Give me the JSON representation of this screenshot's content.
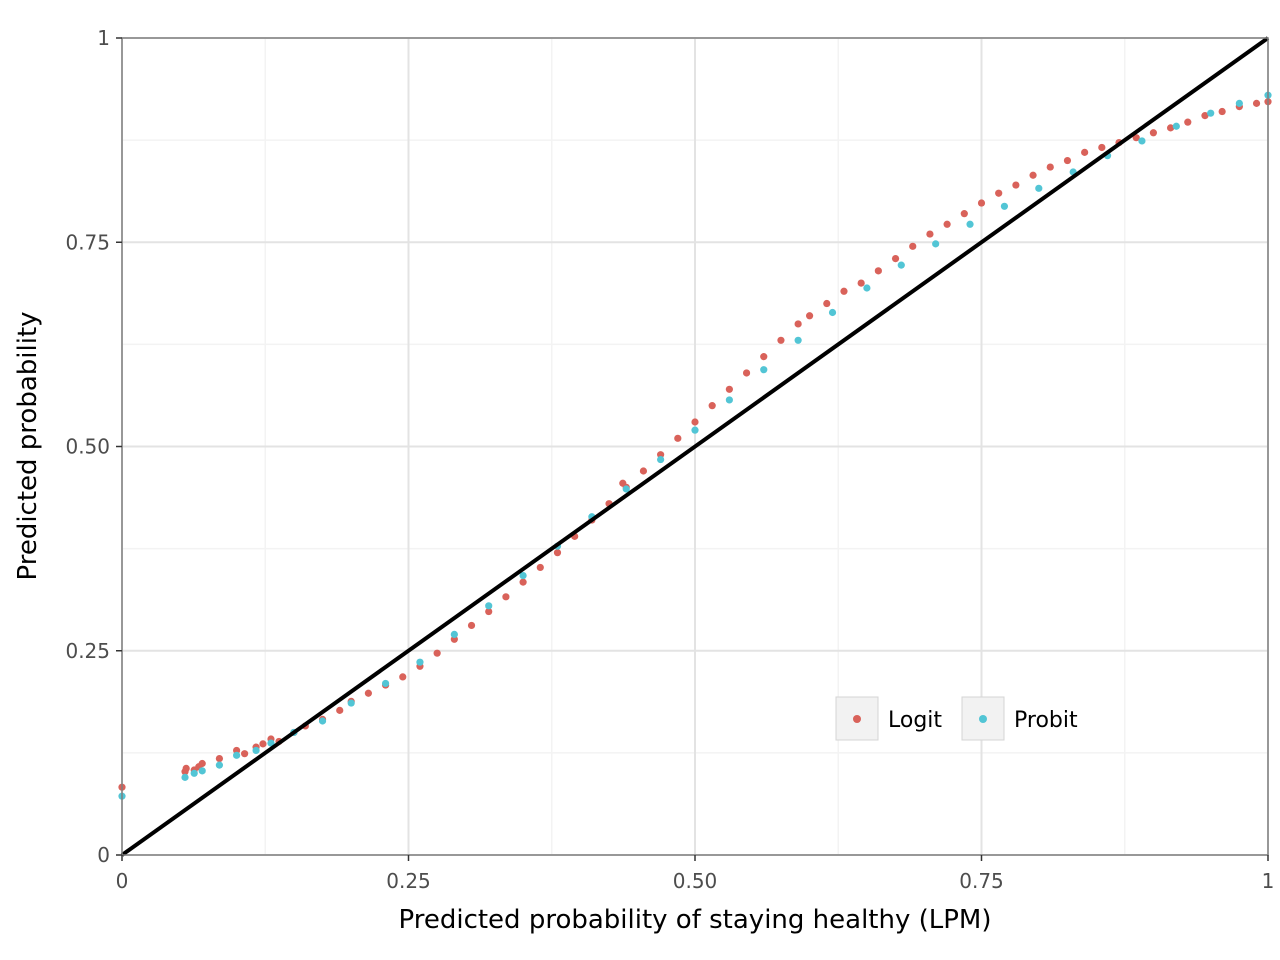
{
  "chart_data": {
    "type": "scatter",
    "xlabel": "Predicted probability of staying healthy (LPM)",
    "ylabel": "Predicted probability",
    "xlim": [
      0,
      1
    ],
    "ylim": [
      0,
      1
    ],
    "x_ticks": [
      {
        "value": 0,
        "label": "0"
      },
      {
        "value": 0.25,
        "label": "0.25"
      },
      {
        "value": 0.5,
        "label": "0.50"
      },
      {
        "value": 0.75,
        "label": "0.75"
      },
      {
        "value": 1,
        "label": "1"
      }
    ],
    "y_ticks": [
      {
        "value": 0,
        "label": "0"
      },
      {
        "value": 0.25,
        "label": "0.25"
      },
      {
        "value": 0.5,
        "label": "0.50"
      },
      {
        "value": 0.75,
        "label": "0.75"
      },
      {
        "value": 1,
        "label": "1"
      }
    ],
    "grid": true,
    "legend_position": "bottom-right",
    "reference_line": {
      "from": [
        0,
        0
      ],
      "to": [
        1,
        1
      ],
      "color": "#000000"
    },
    "series": [
      {
        "name": "Logit",
        "color": "#d9625a",
        "points": [
          [
            0.0,
            0.083
          ],
          [
            0.055,
            0.102
          ],
          [
            0.056,
            0.106
          ],
          [
            0.063,
            0.104
          ],
          [
            0.067,
            0.108
          ],
          [
            0.07,
            0.112
          ],
          [
            0.085,
            0.118
          ],
          [
            0.1,
            0.128
          ],
          [
            0.107,
            0.124
          ],
          [
            0.117,
            0.132
          ],
          [
            0.123,
            0.136
          ],
          [
            0.13,
            0.142
          ],
          [
            0.137,
            0.139
          ],
          [
            0.15,
            0.15
          ],
          [
            0.16,
            0.158
          ],
          [
            0.175,
            0.166
          ],
          [
            0.19,
            0.177
          ],
          [
            0.2,
            0.188
          ],
          [
            0.215,
            0.198
          ],
          [
            0.23,
            0.208
          ],
          [
            0.245,
            0.218
          ],
          [
            0.26,
            0.231
          ],
          [
            0.275,
            0.247
          ],
          [
            0.29,
            0.264
          ],
          [
            0.305,
            0.281
          ],
          [
            0.32,
            0.298
          ],
          [
            0.335,
            0.316
          ],
          [
            0.35,
            0.334
          ],
          [
            0.365,
            0.352
          ],
          [
            0.38,
            0.37
          ],
          [
            0.395,
            0.39
          ],
          [
            0.41,
            0.41
          ],
          [
            0.425,
            0.43
          ],
          [
            0.437,
            0.455
          ],
          [
            0.44,
            0.45
          ],
          [
            0.455,
            0.47
          ],
          [
            0.47,
            0.49
          ],
          [
            0.485,
            0.51
          ],
          [
            0.5,
            0.53
          ],
          [
            0.515,
            0.55
          ],
          [
            0.53,
            0.57
          ],
          [
            0.545,
            0.59
          ],
          [
            0.56,
            0.61
          ],
          [
            0.575,
            0.63
          ],
          [
            0.59,
            0.65
          ],
          [
            0.6,
            0.66
          ],
          [
            0.615,
            0.675
          ],
          [
            0.63,
            0.69
          ],
          [
            0.645,
            0.7
          ],
          [
            0.66,
            0.715
          ],
          [
            0.675,
            0.73
          ],
          [
            0.69,
            0.745
          ],
          [
            0.705,
            0.76
          ],
          [
            0.72,
            0.772
          ],
          [
            0.735,
            0.785
          ],
          [
            0.75,
            0.798
          ],
          [
            0.765,
            0.81
          ],
          [
            0.78,
            0.82
          ],
          [
            0.795,
            0.832
          ],
          [
            0.81,
            0.842
          ],
          [
            0.825,
            0.85
          ],
          [
            0.84,
            0.86
          ],
          [
            0.855,
            0.866
          ],
          [
            0.87,
            0.872
          ],
          [
            0.885,
            0.878
          ],
          [
            0.9,
            0.884
          ],
          [
            0.915,
            0.89
          ],
          [
            0.93,
            0.897
          ],
          [
            0.945,
            0.905
          ],
          [
            0.96,
            0.91
          ],
          [
            0.975,
            0.916
          ],
          [
            0.99,
            0.92
          ],
          [
            1.0,
            0.922
          ]
        ]
      },
      {
        "name": "Probit",
        "color": "#52c5d5",
        "points": [
          [
            0.0,
            0.072
          ],
          [
            0.055,
            0.095
          ],
          [
            0.063,
            0.1
          ],
          [
            0.07,
            0.103
          ],
          [
            0.085,
            0.11
          ],
          [
            0.1,
            0.122
          ],
          [
            0.117,
            0.128
          ],
          [
            0.13,
            0.137
          ],
          [
            0.15,
            0.15
          ],
          [
            0.175,
            0.164
          ],
          [
            0.2,
            0.186
          ],
          [
            0.23,
            0.21
          ],
          [
            0.26,
            0.236
          ],
          [
            0.29,
            0.27
          ],
          [
            0.32,
            0.305
          ],
          [
            0.35,
            0.342
          ],
          [
            0.38,
            0.378
          ],
          [
            0.41,
            0.414
          ],
          [
            0.44,
            0.448
          ],
          [
            0.47,
            0.484
          ],
          [
            0.5,
            0.52
          ],
          [
            0.53,
            0.557
          ],
          [
            0.56,
            0.594
          ],
          [
            0.59,
            0.63
          ],
          [
            0.62,
            0.664
          ],
          [
            0.65,
            0.694
          ],
          [
            0.68,
            0.722
          ],
          [
            0.71,
            0.748
          ],
          [
            0.74,
            0.772
          ],
          [
            0.77,
            0.794
          ],
          [
            0.8,
            0.816
          ],
          [
            0.83,
            0.836
          ],
          [
            0.86,
            0.856
          ],
          [
            0.89,
            0.874
          ],
          [
            0.92,
            0.892
          ],
          [
            0.95,
            0.908
          ],
          [
            0.975,
            0.92
          ],
          [
            1.0,
            0.93
          ]
        ]
      }
    ]
  }
}
